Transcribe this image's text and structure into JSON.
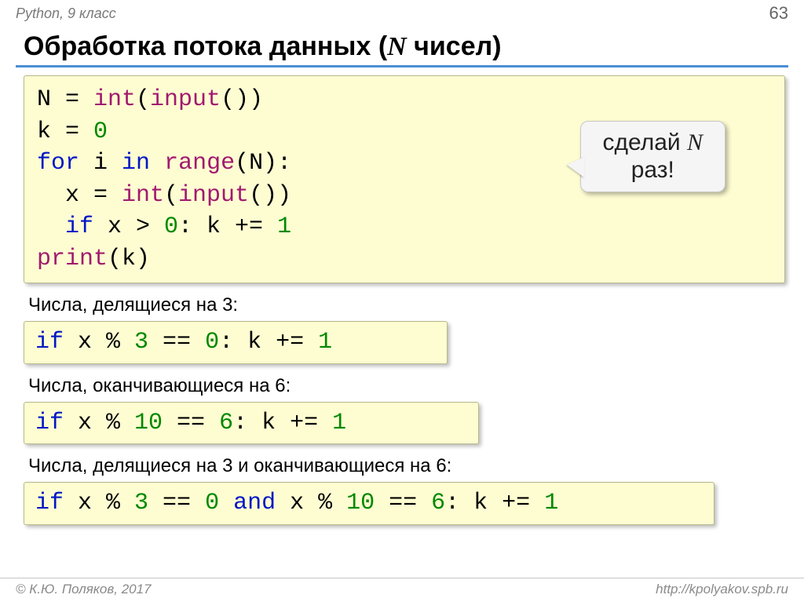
{
  "header": {
    "course": "Python, 9 класс",
    "page": "63"
  },
  "title": {
    "pre": "Обработка потока данных (",
    "var": "N",
    "post": " чисел)"
  },
  "code_main": {
    "l1a": "N = ",
    "l1b": "int",
    "l1c": "(",
    "l1d": "input",
    "l1e": "())",
    "l2a": "k = ",
    "l2b": "0",
    "l3a": "for",
    "l3b": " i ",
    "l3c": "in",
    "l3d": " ",
    "l3e": "range",
    "l3f": "(N):",
    "l4a": "x = ",
    "l4b": "int",
    "l4c": "(",
    "l4d": "input",
    "l4e": "())",
    "l5a": "if",
    "l5b": " x > ",
    "l5c": "0",
    "l5d": ": k += ",
    "l5e": "1",
    "l6a": "print",
    "l6b": "(k)"
  },
  "callout": {
    "line1a": "сделай ",
    "line1b": "N",
    "line2": "раз!"
  },
  "sections": {
    "s1": "Числа, делящиеся на 3:",
    "s2": "Числа, оканчивающиеся на 6:",
    "s3": "Числа, делящиеся на 3 и оканчивающиеся на 6:"
  },
  "code_ex1": {
    "a": "if",
    "b": " x % ",
    "c": "3",
    "d": " == ",
    "e": "0",
    "f": ": k += ",
    "g": "1"
  },
  "code_ex2": {
    "a": "if",
    "b": " x % ",
    "c": "10",
    "d": " == ",
    "e": "6",
    "f": ": k += ",
    "g": "1"
  },
  "code_ex3": {
    "a": "if",
    "b": " x % ",
    "c": "3",
    "d": " == ",
    "e": "0",
    "f": " ",
    "g": "and",
    "h": " x % ",
    "i": "10",
    "j": " == ",
    "k": "6",
    "l": ": k += ",
    "m": "1"
  },
  "footer": {
    "left": "© К.Ю. Поляков, 2017",
    "right": "http://kpolyakov.spb.ru"
  },
  "colors": {
    "code_bg": "#fefdd2",
    "keyword": "#0017c6",
    "builtin": "#a11a6f",
    "number": "#008800",
    "underline": "#4a8fd6",
    "callout_bg": "#f5f5f5",
    "text_muted": "#7a7a7a"
  },
  "fonts": {
    "title_size_pt": 26,
    "code_size_pt": 22,
    "subhead_size_pt": 18,
    "code_family": "Courier New"
  }
}
